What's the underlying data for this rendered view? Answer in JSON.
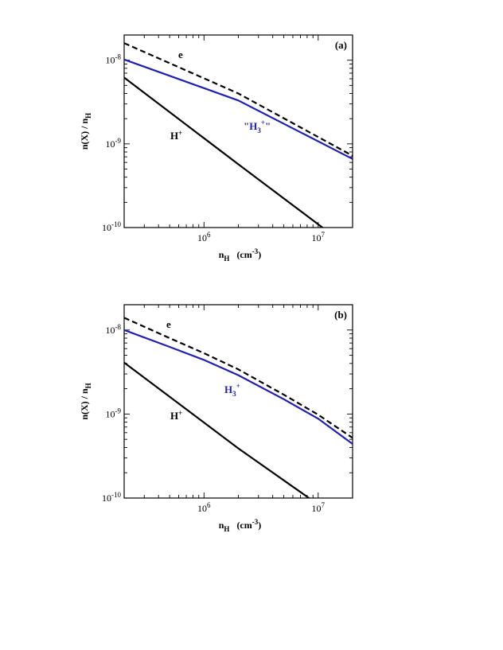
{
  "colors": {
    "electron": "#000000",
    "hplus": "#000000",
    "h3plus": "#1f1fb4",
    "axes": "#000000"
  },
  "chart_data": [
    {
      "type": "line",
      "panel_label": "(a)",
      "xscale": "log",
      "yscale": "log",
      "xlim": [
        200000,
        20000000
      ],
      "ylim": [
        1e-10,
        2e-08
      ],
      "xlabel": {
        "main": "n",
        "sub": "H",
        "unit": "(cm",
        "unit_sup": "-3",
        "unit_close": ")"
      },
      "ylabel": "n(X) / n",
      "ylabel_sub": "H",
      "xticks": [
        {
          "base": "10",
          "exp": "6"
        },
        {
          "base": "10",
          "exp": "7"
        }
      ],
      "yticks": [
        {
          "base": "10",
          "exp": "-10"
        },
        {
          "base": "10",
          "exp": "-9"
        },
        {
          "base": "10",
          "exp": "-8"
        }
      ],
      "series": [
        {
          "key": "electron",
          "label": "e",
          "label_sup": "",
          "label_sub": "",
          "label_post": "",
          "dashed": true,
          "x": [
            200000,
            2000000,
            20000000
          ],
          "y": [
            1.6e-08,
            4e-09,
            7.2e-10
          ]
        },
        {
          "key": "h3plus",
          "label": "\"H",
          "label_sub": "3",
          "label_sup": "+",
          "label_post": "\"",
          "dashed": false,
          "x": [
            200000,
            2000000,
            20000000
          ],
          "y": [
            1.02e-08,
            3.3e-09,
            6.6e-10
          ]
        },
        {
          "key": "hplus",
          "label": "H",
          "label_sub": "",
          "label_sup": "+",
          "label_post": "",
          "dashed": false,
          "x": [
            200000,
            2000000,
            10900000
          ],
          "y": [
            6.2e-09,
            5.7e-10,
            1e-10
          ]
        }
      ]
    },
    {
      "type": "line",
      "panel_label": "(b)",
      "xscale": "log",
      "yscale": "log",
      "xlim": [
        200000,
        20000000
      ],
      "ylim": [
        1e-10,
        2e-08
      ],
      "xlabel": {
        "main": "n",
        "sub": "H",
        "unit": "(cm",
        "unit_sup": "-3",
        "unit_close": ")"
      },
      "ylabel": "n(X) / n",
      "ylabel_sub": "H",
      "xticks": [
        {
          "base": "10",
          "exp": "6"
        },
        {
          "base": "10",
          "exp": "7"
        }
      ],
      "yticks": [
        {
          "base": "10",
          "exp": "-10"
        },
        {
          "base": "10",
          "exp": "-9"
        },
        {
          "base": "10",
          "exp": "-8"
        }
      ],
      "series": [
        {
          "key": "electron",
          "label": "e",
          "label_sup": "",
          "label_sub": "",
          "label_post": "",
          "dashed": true,
          "x": [
            200000,
            500000,
            1000000,
            2000000,
            5000000,
            10000000,
            20000000
          ],
          "y": [
            1.4e-08,
            8e-09,
            5.3e-09,
            3.4e-09,
            1.7e-09,
            9.8e-10,
            5.2e-10
          ]
        },
        {
          "key": "h3plus",
          "label": "H",
          "label_sub": "3",
          "label_sup": "+",
          "label_post": "",
          "dashed": false,
          "x": [
            200000,
            500000,
            1000000,
            2000000,
            5000000,
            10000000,
            20000000
          ],
          "y": [
            1e-08,
            6.3e-09,
            4.4e-09,
            2.9e-09,
            1.5e-09,
            8.8e-10,
            4.4e-10
          ]
        },
        {
          "key": "hplus",
          "label": "H",
          "label_sub": "",
          "label_sup": "+",
          "label_post": "",
          "dashed": false,
          "x": [
            200000,
            2000000,
            8300000
          ],
          "y": [
            4.1e-09,
            3.9e-10,
            1e-10
          ]
        }
      ]
    }
  ]
}
